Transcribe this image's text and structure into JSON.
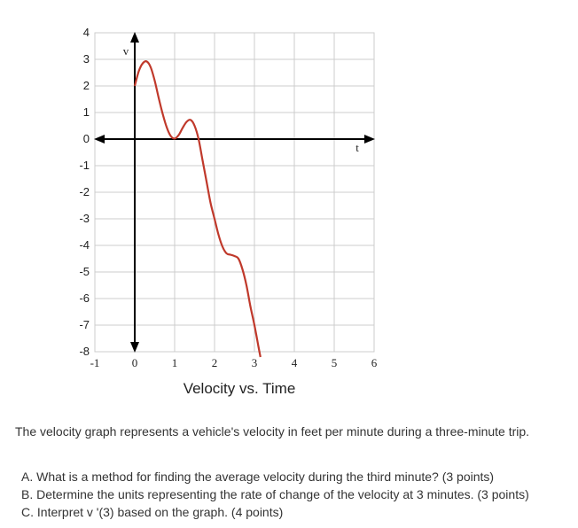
{
  "chart_data": {
    "type": "line",
    "title": "Velocity vs. Time",
    "xlabel": "t",
    "ylabel": "v",
    "xlim": [
      -1,
      6
    ],
    "ylim": [
      -8,
      4
    ],
    "xticks": [
      "-1",
      "0",
      "1",
      "2",
      "3",
      "4",
      "5",
      "6"
    ],
    "yticks": [
      "4",
      "3",
      "2",
      "1",
      "0",
      "-1",
      "-2",
      "-3",
      "-4",
      "-5",
      "-6",
      "-7",
      "-8"
    ],
    "grid": true,
    "series": [
      {
        "color": "#c0392b",
        "x": [
          0,
          0.1,
          0.2,
          0.3,
          0.4,
          0.5,
          0.6,
          0.7,
          0.8,
          0.9,
          1.0,
          1.1,
          1.2,
          1.3,
          1.4,
          1.5,
          1.6,
          1.7,
          1.8,
          1.9,
          2.0,
          2.1,
          2.2,
          2.3,
          2.4,
          2.5,
          2.6,
          2.7,
          2.8,
          2.9,
          3.0,
          3.1,
          3.15
        ],
        "y": [
          2.0,
          2.55,
          2.85,
          2.92,
          2.7,
          2.2,
          1.55,
          0.95,
          0.45,
          0.12,
          0.02,
          0.15,
          0.42,
          0.65,
          0.72,
          0.5,
          0.0,
          -0.8,
          -1.6,
          -2.4,
          -3.0,
          -3.6,
          -4.05,
          -4.3,
          -4.35,
          -4.4,
          -4.5,
          -4.9,
          -5.5,
          -6.3,
          -7.0,
          -7.8,
          -8.2
        ]
      }
    ]
  },
  "text": {
    "intro": "The velocity graph represents a vehicle's velocity in feet per minute during a three-minute trip.",
    "questions": [
      "A. What is a method for finding the average velocity during the third minute? (3 points)",
      "B. Determine the units representing the rate of change of the velocity at 3 minutes. (3 points)",
      "C. Interpret v '(3) based on the graph. (4 points)"
    ]
  }
}
